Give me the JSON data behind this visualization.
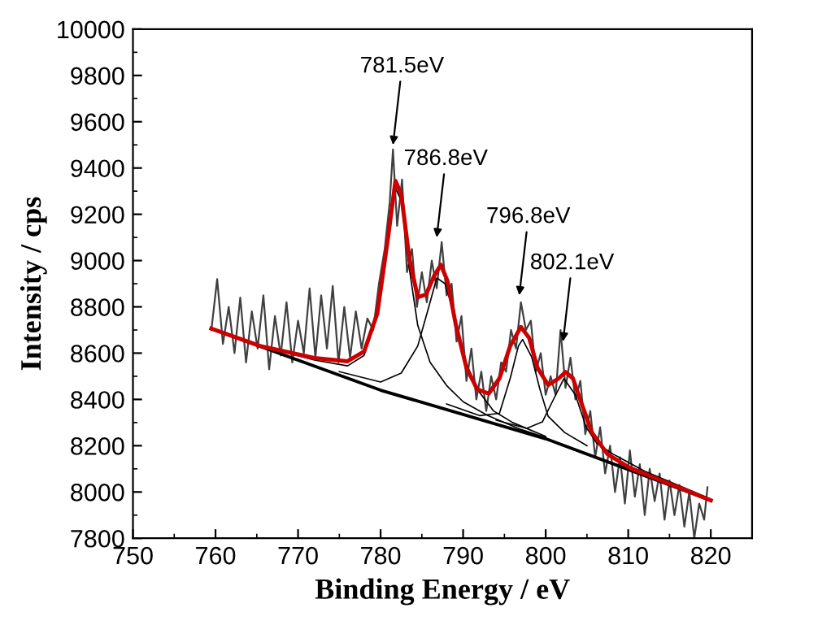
{
  "chart_data": {
    "type": "line",
    "xlabel": "Binding Energy / eV",
    "ylabel": "Intensity / cps",
    "xlim": [
      750,
      825
    ],
    "xticks": [
      750,
      760,
      770,
      780,
      790,
      800,
      810,
      820
    ],
    "ylim": [
      7800,
      10000
    ],
    "yticks": [
      7800,
      8000,
      8200,
      8400,
      8600,
      8800,
      9000,
      9200,
      9400,
      9600,
      9800,
      10000
    ],
    "grid": false,
    "legend": false,
    "marker": "none",
    "line_style": "solid",
    "annotations": [
      {
        "text": "781.5eV",
        "x": 781.5,
        "y": 9500
      },
      {
        "text": "786.8eV",
        "x": 786.8,
        "y": 9100
      },
      {
        "text": "796.8eV",
        "x": 796.8,
        "y": 8850
      },
      {
        "text": "802.1eV",
        "x": 802.1,
        "y": 8650
      }
    ],
    "series": [
      {
        "color": "#404040",
        "x": [
          759.5,
          760.2,
          760.9,
          761.6,
          762.3,
          763.0,
          763.7,
          764.4,
          765.1,
          765.8,
          766.5,
          767.2,
          767.9,
          768.6,
          769.3,
          770.0,
          770.7,
          771.4,
          772.1,
          772.8,
          773.5,
          774.2,
          774.9,
          775.6,
          776.3,
          777.0,
          777.7,
          778.4,
          779.1,
          779.8,
          780.5,
          781.1,
          781.5,
          782.0,
          782.6,
          783.2,
          783.8,
          784.4,
          785.0,
          785.6,
          786.2,
          786.8,
          787.4,
          788.0,
          788.6,
          789.2,
          789.8,
          790.4,
          791.0,
          791.6,
          792.2,
          792.8,
          793.4,
          794.0,
          794.6,
          795.2,
          795.8,
          796.4,
          797.0,
          797.6,
          798.2,
          798.8,
          799.4,
          800.0,
          800.6,
          801.2,
          801.8,
          802.4,
          803.0,
          803.6,
          804.2,
          804.8,
          805.4,
          806.0,
          806.6,
          807.2,
          807.8,
          808.4,
          809.0,
          809.6,
          810.2,
          810.8,
          811.4,
          812.0,
          812.6,
          813.2,
          813.8,
          814.4,
          815.0,
          815.6,
          816.2,
          816.8,
          817.4,
          818.0,
          818.6,
          819.2,
          819.6
        ],
        "values": [
          8700,
          8920,
          8640,
          8800,
          8600,
          8840,
          8560,
          8780,
          8620,
          8850,
          8530,
          8760,
          8590,
          8820,
          8560,
          8740,
          8600,
          8880,
          8580,
          8850,
          8620,
          8890,
          8560,
          8800,
          8580,
          8780,
          8620,
          8750,
          8700,
          8900,
          9050,
          9250,
          9480,
          9150,
          9350,
          8950,
          9050,
          8800,
          8950,
          8820,
          9000,
          8880,
          9080,
          8850,
          8900,
          8650,
          8760,
          8480,
          8620,
          8400,
          8520,
          8350,
          8500,
          8400,
          8560,
          8520,
          8700,
          8620,
          8820,
          8700,
          8740,
          8520,
          8600,
          8420,
          8500,
          8420,
          8700,
          8450,
          8580,
          8400,
          8480,
          8250,
          8350,
          8150,
          8280,
          8080,
          8200,
          8000,
          8150,
          7950,
          8180,
          7980,
          8120,
          7900,
          8100,
          7960,
          8080,
          7880,
          8050,
          7900,
          8030,
          7850,
          8000,
          7800,
          7950,
          7880,
          8020
        ]
      },
      {
        "color": "#000000",
        "x": [
          759.5,
          780,
          800,
          820
        ],
        "values": [
          8706,
          8440,
          8230,
          7964
        ]
      },
      {
        "color": "#000000",
        "x": [
          759.5,
          765,
          772,
          776,
          778,
          779.6,
          780.9,
          781.7,
          782.5,
          783.5,
          784.5,
          786,
          788,
          790,
          793,
          797,
          800
        ],
        "values": [
          8706,
          8635,
          8570,
          8545,
          8590,
          8760,
          9090,
          9320,
          9260,
          8960,
          8720,
          8560,
          8460,
          8390,
          8330,
          8270,
          8235
        ]
      },
      {
        "color": "#000000",
        "x": [
          775,
          780,
          782.5,
          784.5,
          785.8,
          786.8,
          787.8,
          788.5,
          789.8,
          791.7,
          793.7,
          796,
          800
        ],
        "values": [
          8520,
          8475,
          8514,
          8631,
          8795,
          8925,
          8900,
          8818,
          8607,
          8444,
          8350,
          8300,
          8240
        ]
      },
      {
        "color": "#000000",
        "x": [
          788,
          792,
          794.4,
          795.7,
          796.7,
          797.2,
          798.3,
          799.3,
          800.3,
          802.3,
          805
        ],
        "values": [
          8380,
          8330,
          8340,
          8491,
          8631,
          8659,
          8584,
          8444,
          8327,
          8257,
          8200
        ]
      },
      {
        "color": "#000000",
        "x": [
          794,
          797.7,
          799.6,
          800.9,
          802.2,
          803.6,
          804.9,
          806.2,
          808.2,
          812,
          816,
          820
        ],
        "values": [
          8310,
          8275,
          8303,
          8397,
          8490,
          8420,
          8280,
          8210,
          8163,
          8090,
          8030,
          7970
        ]
      },
      {
        "color": "#cc0000",
        "x": [
          759.5,
          765.4,
          772,
          776,
          778,
          779.6,
          780.9,
          781.8,
          782.5,
          783.5,
          784.5,
          785.5,
          786.5,
          787.3,
          788.1,
          789.1,
          790.4,
          791.7,
          793.1,
          794.4,
          795.7,
          797.0,
          798.0,
          799.0,
          800.3,
          801.6,
          802.4,
          803.3,
          804.2,
          805.6,
          807.5,
          810.2,
          813.4,
          816.7,
          820
        ],
        "values": [
          8706,
          8631,
          8579,
          8565,
          8607,
          8771,
          9099,
          9345,
          9286,
          9005,
          8842,
          8853,
          8935,
          8982,
          8912,
          8725,
          8537,
          8444,
          8425,
          8491,
          8631,
          8713,
          8666,
          8537,
          8462,
          8491,
          8519,
          8491,
          8397,
          8257,
          8163,
          8104,
          8058,
          8011,
          7964
        ]
      }
    ]
  }
}
